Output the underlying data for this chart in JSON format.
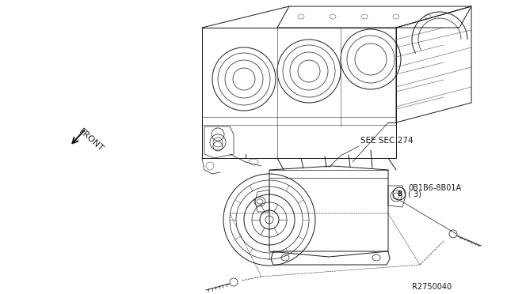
{
  "bg_color": "#ffffff",
  "line_color": "#1a1a1a",
  "gray_color": "#555555",
  "light_gray": "#888888",
  "annotation_label_line1": "0B1B6-8B01A",
  "annotation_label_line2": "( 3)",
  "annotation_circle_letter": "B",
  "see_sec_label": "SEE SEC.274",
  "front_label": "FRONT",
  "ref_label": "R2750040",
  "figsize": [
    6.4,
    3.72
  ],
  "dpi": 100
}
